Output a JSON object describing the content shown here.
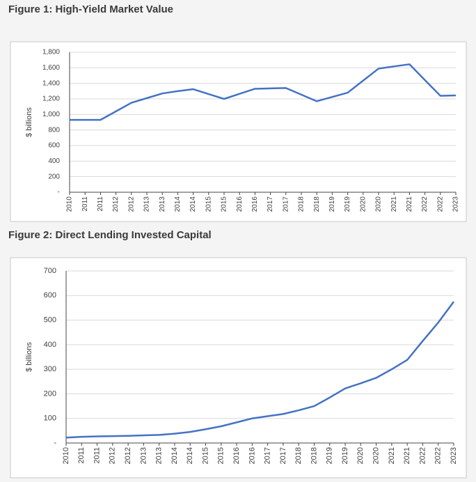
{
  "chart_data": [
    {
      "type": "line",
      "title": "Figure 1: High-Yield Market Value",
      "ylabel": "$ billions",
      "categories": [
        "2010",
        "2011",
        "2011",
        "2012",
        "2012",
        "2013",
        "2013",
        "2014",
        "2014",
        "2015",
        "2015",
        "2016",
        "2016",
        "2017",
        "2017",
        "2018",
        "2018",
        "2019",
        "2019",
        "2020",
        "2020",
        "2021",
        "2021",
        "2022",
        "2022",
        "2023"
      ],
      "values": [
        930,
        930,
        930,
        1040,
        1150,
        1210,
        1270,
        1300,
        1325,
        1262,
        1200,
        1265,
        1330,
        1335,
        1340,
        1255,
        1170,
        1225,
        1280,
        1435,
        1590,
        1618,
        1645,
        1442,
        1240,
        1245
      ],
      "color": "#4472c4",
      "ylim": [
        0,
        1800
      ],
      "yticks": [
        {
          "value": 0,
          "label": "-"
        },
        200,
        400,
        600,
        800,
        {
          "value": 1000,
          "label": "1,000"
        },
        {
          "value": 1200,
          "label": "1,200"
        },
        {
          "value": 1400,
          "label": "1,400"
        },
        {
          "value": 1600,
          "label": "1,600"
        },
        {
          "value": 1800,
          "label": "1,800"
        }
      ],
      "grid": true
    },
    {
      "type": "line",
      "title": "Figure 2: Direct Lending Invested Capital",
      "ylabel": "$ billions",
      "categories": [
        "2010",
        "2011",
        "2011",
        "2012",
        "2012",
        "2013",
        "2013",
        "2014",
        "2014",
        "2015",
        "2015",
        "2016",
        "2016",
        "2017",
        "2017",
        "2018",
        "2018",
        "2019",
        "2019",
        "2020",
        "2020",
        "2021",
        "2021",
        "2022",
        "2022",
        "2023"
      ],
      "values": [
        22,
        25,
        27,
        28,
        29,
        31,
        33,
        38,
        45,
        56,
        68,
        84,
        100,
        109,
        118,
        133,
        150,
        185,
        222,
        243,
        265,
        300,
        338,
        415,
        490,
        575
      ],
      "color": "#4472c4",
      "ylim": [
        0,
        700
      ],
      "yticks": [
        {
          "value": 0,
          "label": "-"
        },
        100,
        200,
        300,
        400,
        500,
        600,
        700
      ],
      "grid": true
    }
  ]
}
